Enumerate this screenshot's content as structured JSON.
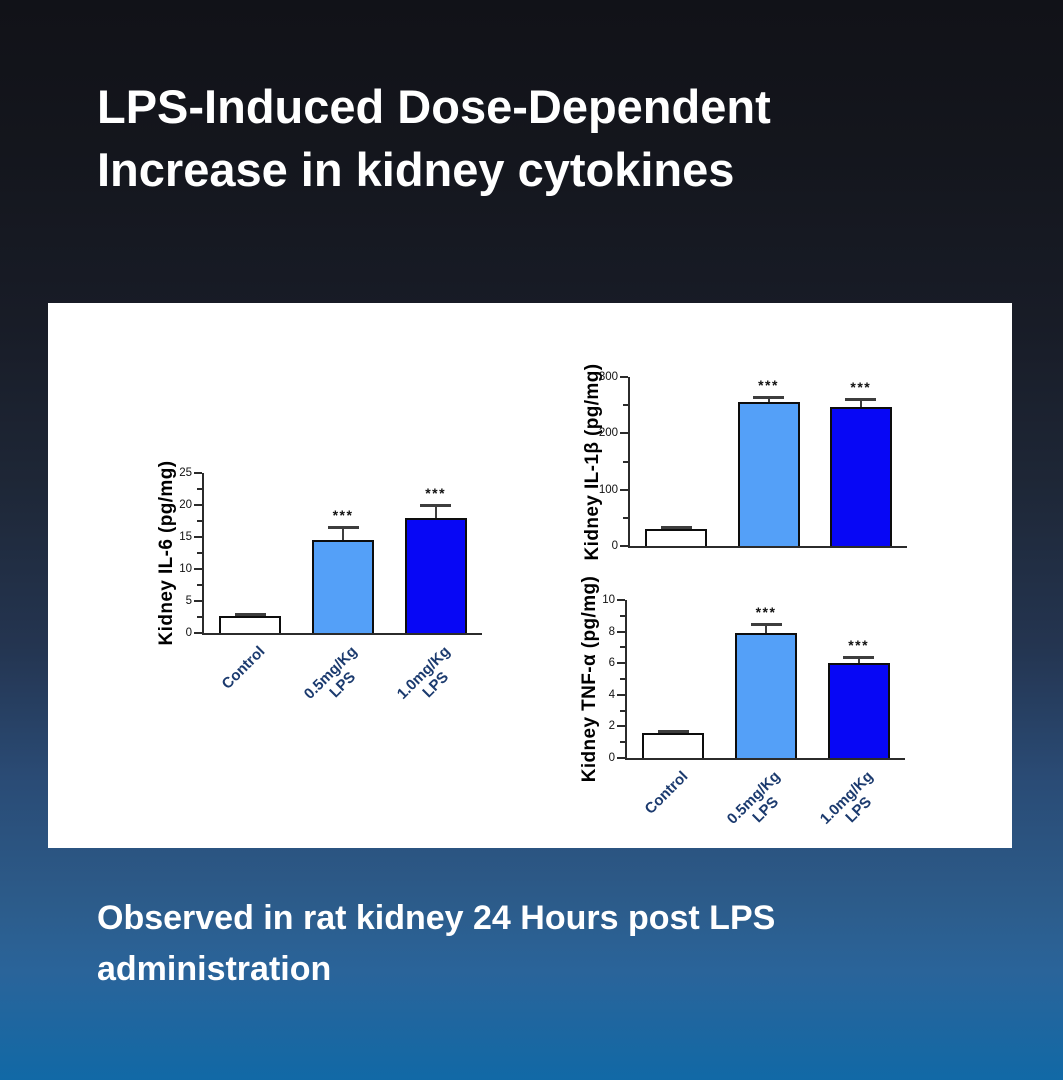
{
  "slide": {
    "title": "LPS-Induced Dose-Dependent\nIncrease in kidney cytokines",
    "caption": "Observed in rat kidney 24 Hours post LPS\nadministration"
  },
  "colors": {
    "background_top": "#111218",
    "background_bottom": "#1169A6",
    "panel_background": "#FFFFFF",
    "text": "#FFFFFF",
    "axis": "#2B2B2B",
    "category_label": "#1B3A6E",
    "error_bar": "#3D3D3D",
    "bar_border": "#0D0D0D",
    "bar_control_fill": "#FFFFFF",
    "bar_low_dose_fill": "#54A0F8",
    "bar_high_dose_fill": "#0707F5"
  },
  "chart_data": [
    {
      "type": "bar",
      "ylabel": "Kidney IL-6 (pg/mg)",
      "xlabel": "",
      "ylim": [
        0,
        25
      ],
      "yticks": [
        0,
        5,
        10,
        15,
        20,
        25
      ],
      "minor_ticks": true,
      "grid": false,
      "legend": "none",
      "categories": [
        "Control",
        "0.5mg/Kg\nLPS",
        "1.0mg/Kg\nLPS"
      ],
      "values": [
        2.7,
        14.6,
        18.0
      ],
      "errors": [
        0.3,
        1.9,
        2.0
      ],
      "significance": [
        "",
        "***",
        "***"
      ],
      "bar_colors": [
        "#FFFFFF",
        "#54A0F8",
        "#0707F5"
      ],
      "show_x_labels": true
    },
    {
      "type": "bar",
      "ylabel": "Kidney IL-1β (pg/mg)",
      "xlabel": "",
      "ylim": [
        0,
        300
      ],
      "yticks": [
        0,
        100,
        200,
        300
      ],
      "minor_ticks": true,
      "grid": false,
      "legend": "none",
      "categories": [
        "Control",
        "0.5mg/Kg\nLPS",
        "1.0mg/Kg\nLPS"
      ],
      "values": [
        30,
        255,
        247
      ],
      "errors": [
        4,
        10,
        14
      ],
      "significance": [
        "",
        "***",
        "***"
      ],
      "bar_colors": [
        "#FFFFFF",
        "#54A0F8",
        "#0707F5"
      ],
      "show_x_labels": false
    },
    {
      "type": "bar",
      "ylabel": "Kidney TNF-α (pg/mg)",
      "xlabel": "",
      "ylim": [
        0,
        10
      ],
      "yticks": [
        0,
        2,
        4,
        6,
        8,
        10
      ],
      "minor_ticks": true,
      "grid": false,
      "legend": "none",
      "categories": [
        "Control",
        "0.5mg/Kg\nLPS",
        "1.0mg/Kg\nLPS"
      ],
      "values": [
        1.6,
        7.9,
        6.0
      ],
      "errors": [
        0.1,
        0.6,
        0.4
      ],
      "significance": [
        "",
        "***",
        "***"
      ],
      "bar_colors": [
        "#FFFFFF",
        "#54A0F8",
        "#0707F5"
      ],
      "show_x_labels": true
    }
  ]
}
